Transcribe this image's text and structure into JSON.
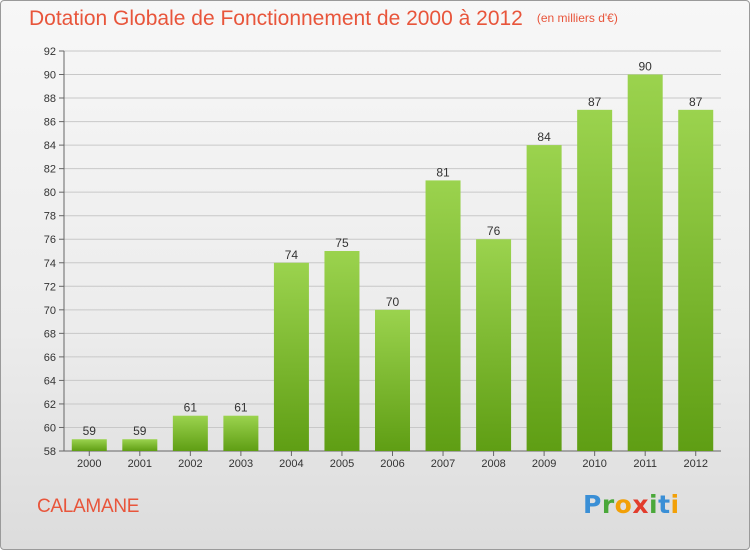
{
  "title": {
    "main": "Dotation Globale de Fonctionnement de 2000 à 2012",
    "unit": "(en milliers d'€)"
  },
  "commune": "CALAMANE",
  "logo": {
    "text": "Proxiti"
  },
  "colors": {
    "title": "#e8553b",
    "bar_top": "#9bd34e",
    "bar_bottom": "#5f9e14",
    "grid": "#c8c8c8",
    "axis_text": "#333333"
  },
  "chart_data": {
    "type": "bar",
    "title": "Dotation Globale de Fonctionnement de 2000 à 2012",
    "subtitle": "(en milliers d'€)",
    "xlabel": "",
    "ylabel": "",
    "categories": [
      "2000",
      "2001",
      "2002",
      "2003",
      "2004",
      "2005",
      "2006",
      "2007",
      "2008",
      "2009",
      "2010",
      "2011",
      "2012"
    ],
    "values": [
      59,
      59,
      61,
      61,
      74,
      75,
      70,
      81,
      76,
      84,
      87,
      90,
      87
    ],
    "ylim": [
      58,
      92
    ],
    "yticks": [
      58,
      60,
      62,
      64,
      66,
      68,
      70,
      72,
      74,
      76,
      78,
      80,
      82,
      84,
      86,
      88,
      90,
      92
    ],
    "grid": true,
    "data_labels": true
  }
}
